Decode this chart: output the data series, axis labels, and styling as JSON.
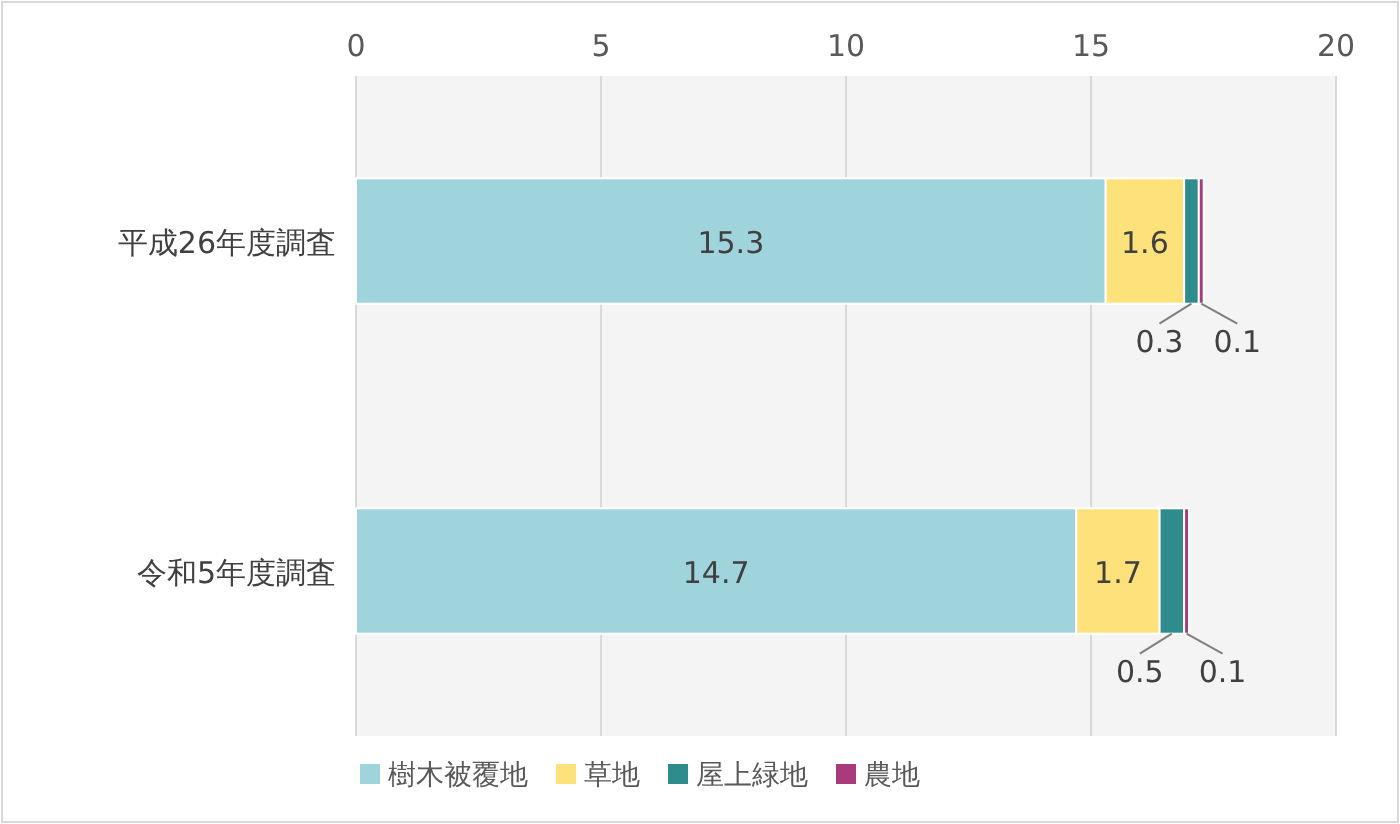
{
  "chart_data": {
    "type": "bar",
    "orientation": "horizontal",
    "stacked": true,
    "categories": [
      "平成26年度調査",
      "令和5年度調査"
    ],
    "series": [
      {
        "name": "樹木被覆地",
        "color": "#9fd4dc",
        "values": [
          15.3,
          14.7
        ]
      },
      {
        "name": "草地",
        "color": "#fde27c",
        "values": [
          1.6,
          1.7
        ]
      },
      {
        "name": "屋上緑地",
        "color": "#2f8c8c",
        "values": [
          0.3,
          0.5
        ]
      },
      {
        "name": "農地",
        "color": "#a93b7c",
        "values": [
          0.1,
          0.1
        ]
      }
    ],
    "xlim": [
      0,
      20
    ],
    "xticks": [
      0,
      5,
      10,
      15,
      20
    ],
    "grid": "x",
    "legend": "bottom",
    "data_labels": true
  }
}
